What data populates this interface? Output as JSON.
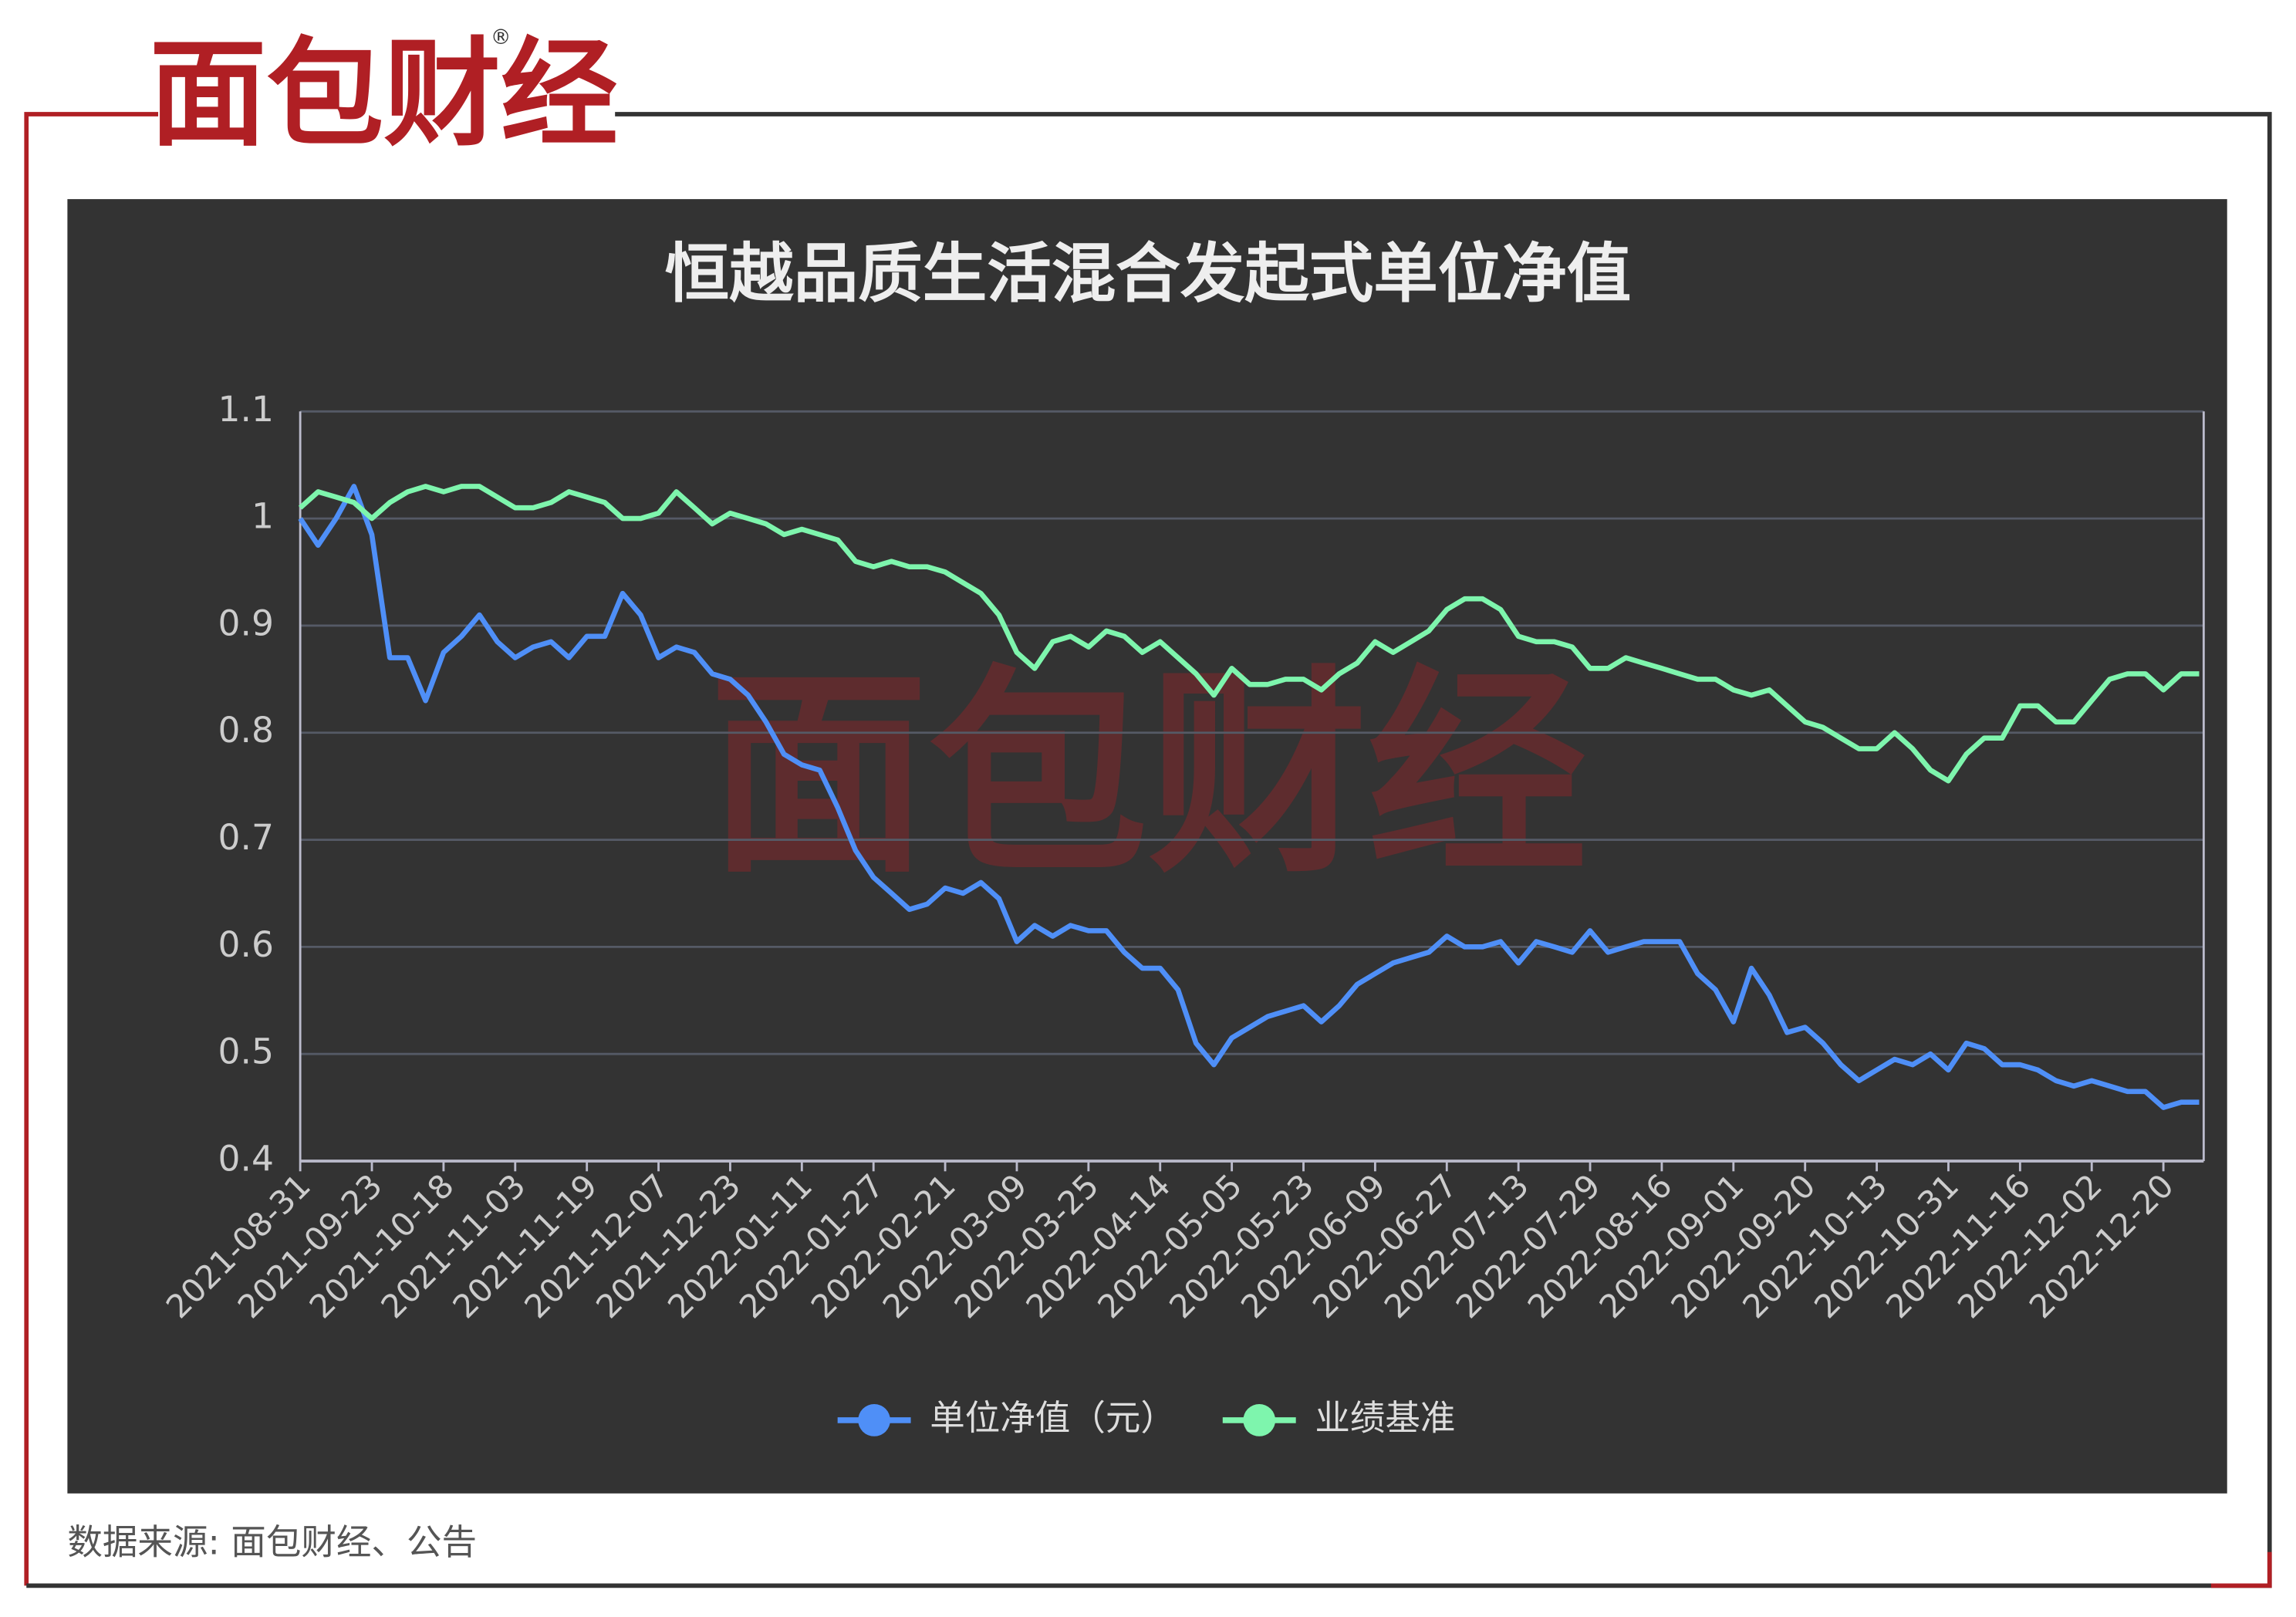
{
  "header": {
    "logo": "面包财经",
    "registered": "®"
  },
  "watermark": "面包财经",
  "footer": {
    "source": "数据来源: 面包财经、公告"
  },
  "chart_data": {
    "type": "line",
    "title": "恒越品质生活混合发起式单位净值",
    "categories": [
      "2021-08-31",
      null,
      null,
      null,
      "2021-09-23",
      null,
      null,
      null,
      "2021-10-18",
      null,
      null,
      null,
      "2021-11-03",
      null,
      null,
      null,
      "2021-11-19",
      null,
      null,
      null,
      "2021-12-07",
      null,
      null,
      null,
      "2021-12-23",
      null,
      null,
      null,
      "2022-01-11",
      null,
      null,
      null,
      "2022-01-27",
      null,
      null,
      null,
      "2022-02-21",
      null,
      null,
      null,
      "2022-03-09",
      null,
      null,
      null,
      "2022-03-25",
      null,
      null,
      null,
      "2022-04-14",
      null,
      null,
      null,
      "2022-05-05",
      null,
      null,
      null,
      "2022-05-23",
      null,
      null,
      null,
      "2022-06-09",
      null,
      null,
      null,
      "2022-06-27",
      null,
      null,
      null,
      "2022-07-13",
      null,
      null,
      null,
      "2022-07-29",
      null,
      null,
      null,
      "2022-08-16",
      null,
      null,
      null,
      "2022-09-01",
      null,
      null,
      null,
      "2022-09-20",
      null,
      null,
      null,
      "2022-10-13",
      null,
      null,
      null,
      "2022-10-31",
      null,
      null,
      null,
      "2022-11-16",
      null,
      null,
      null,
      "2022-12-02",
      null,
      null,
      null,
      "2022-12-20",
      null,
      null
    ],
    "series": [
      {
        "name": "单位净值（元）",
        "color": "#4f8ff7",
        "values": [
          1.0,
          0.975,
          1.0,
          1.03,
          0.985,
          0.87,
          0.87,
          0.83,
          0.875,
          0.89,
          0.91,
          0.885,
          0.87,
          0.88,
          0.885,
          0.87,
          0.89,
          0.89,
          0.93,
          0.91,
          0.87,
          0.88,
          0.875,
          0.855,
          0.85,
          0.835,
          0.81,
          0.78,
          0.77,
          0.765,
          0.73,
          0.69,
          0.665,
          0.65,
          0.635,
          0.64,
          0.655,
          0.65,
          0.66,
          0.645,
          0.605,
          0.62,
          0.61,
          0.62,
          0.615,
          0.615,
          0.595,
          0.58,
          0.58,
          0.56,
          0.51,
          0.49,
          0.515,
          0.525,
          0.535,
          0.54,
          0.545,
          0.53,
          0.545,
          0.565,
          0.575,
          0.585,
          0.59,
          0.595,
          0.61,
          0.6,
          0.6,
          0.605,
          0.585,
          0.605,
          0.6,
          0.595,
          0.615,
          0.595,
          0.6,
          0.605,
          0.605,
          0.605,
          0.575,
          0.56,
          0.53,
          0.58,
          0.555,
          0.52,
          0.525,
          0.51,
          0.49,
          0.475,
          0.485,
          0.495,
          0.49,
          0.5,
          0.485,
          0.51,
          0.505,
          0.49,
          0.49,
          0.485,
          0.475,
          0.47,
          0.475,
          0.47,
          0.465,
          0.465,
          0.45,
          0.455,
          0.455
        ]
      },
      {
        "name": "业绩基准",
        "color": "#7ef5ad",
        "values": [
          1.01,
          1.025,
          1.02,
          1.015,
          1.0,
          1.015,
          1.025,
          1.03,
          1.025,
          1.03,
          1.03,
          1.02,
          1.01,
          1.01,
          1.015,
          1.025,
          1.02,
          1.015,
          1.0,
          1.0,
          1.005,
          1.025,
          1.01,
          0.995,
          1.005,
          1.0,
          0.995,
          0.985,
          0.99,
          0.985,
          0.98,
          0.96,
          0.955,
          0.96,
          0.955,
          0.955,
          0.95,
          0.94,
          0.93,
          0.91,
          0.875,
          0.86,
          0.885,
          0.89,
          0.88,
          0.895,
          0.89,
          0.875,
          0.885,
          0.87,
          0.855,
          0.835,
          0.86,
          0.845,
          0.845,
          0.85,
          0.85,
          0.84,
          0.855,
          0.865,
          0.885,
          0.875,
          0.885,
          0.895,
          0.915,
          0.925,
          0.925,
          0.915,
          0.89,
          0.885,
          0.885,
          0.88,
          0.86,
          0.86,
          0.87,
          0.865,
          0.86,
          0.855,
          0.85,
          0.85,
          0.84,
          0.835,
          0.84,
          0.825,
          0.81,
          0.805,
          0.795,
          0.785,
          0.785,
          0.8,
          0.785,
          0.765,
          0.755,
          0.78,
          0.795,
          0.795,
          0.825,
          0.825,
          0.81,
          0.81,
          0.83,
          0.85,
          0.855,
          0.855,
          0.84,
          0.855,
          0.855
        ]
      }
    ],
    "ylim": [
      0.4,
      1.1
    ],
    "yticks": [
      0.4,
      0.5,
      0.6,
      0.7,
      0.8,
      0.9,
      1,
      1.1
    ],
    "grid": true,
    "legend": "bottom"
  }
}
